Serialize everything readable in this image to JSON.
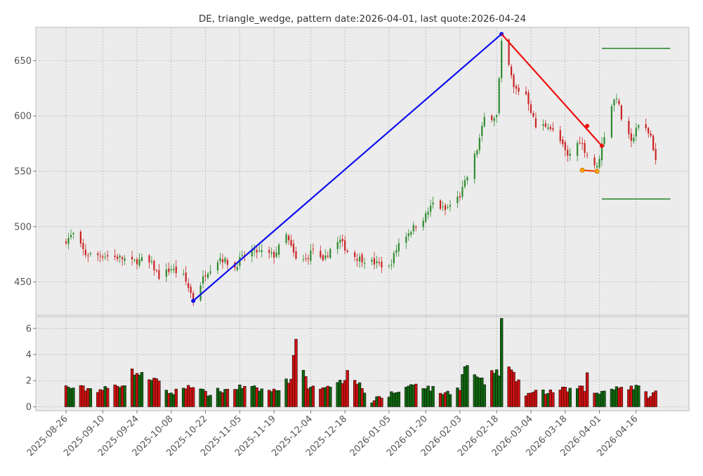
{
  "chart_data": {
    "type": "candlestick-with-volume",
    "title": "DE, triangle_wedge, pattern date:2026-04-01, last quote:2026-04-24",
    "price_panel": {
      "ylim": [
        420,
        680
      ],
      "yticks": [
        450,
        500,
        550,
        600,
        650
      ],
      "grid": true,
      "colors": {
        "up": "#2e8b2e",
        "down": "#cc2222",
        "bg": "#ececec"
      }
    },
    "volume_panel": {
      "ylim": [
        -0.3,
        6.9
      ],
      "yticks": [
        0,
        2,
        4,
        6
      ],
      "grid": true,
      "colors": {
        "up": "#116611",
        "down": "#cc1111"
      }
    },
    "x_ticks": [
      "2025-08-26",
      "2025-09-10",
      "2025-09-24",
      "2025-10-08",
      "2025-10-22",
      "2025-11-05",
      "2025-11-19",
      "2025-12-04",
      "2025-12-18",
      "2026-01-05",
      "2026-01-20",
      "2026-02-03",
      "2026-02-18",
      "2026-03-04",
      "2026-03-18",
      "2026-04-01",
      "2026-04-16"
    ],
    "close_anchors": [
      [
        "2025-08-26",
        488
      ],
      [
        "2025-08-29",
        493
      ],
      [
        "2025-09-03",
        475
      ],
      [
        "2025-09-10",
        474
      ],
      [
        "2025-09-17",
        472
      ],
      [
        "2025-09-22",
        468
      ],
      [
        "2025-09-26",
        470
      ],
      [
        "2025-09-30",
        466
      ],
      [
        "2025-10-03",
        455
      ],
      [
        "2025-10-08",
        462
      ],
      [
        "2025-10-13",
        455
      ],
      [
        "2025-10-16",
        440
      ],
      [
        "2025-10-17",
        434
      ],
      [
        "2025-10-22",
        458
      ],
      [
        "2025-10-28",
        472
      ],
      [
        "2025-11-03",
        463
      ],
      [
        "2025-11-05",
        470
      ],
      [
        "2025-11-10",
        478
      ],
      [
        "2025-11-14",
        477
      ],
      [
        "2025-11-19",
        474
      ],
      [
        "2025-11-24",
        492
      ],
      [
        "2025-11-28",
        470
      ],
      [
        "2025-12-02",
        470
      ],
      [
        "2025-12-05",
        480
      ],
      [
        "2025-12-09",
        467
      ],
      [
        "2025-12-12",
        480
      ],
      [
        "2025-12-16",
        487
      ],
      [
        "2025-12-19",
        478
      ],
      [
        "2025-12-23",
        472
      ],
      [
        "2025-12-29",
        468
      ],
      [
        "2026-01-05",
        463
      ],
      [
        "2026-01-09",
        485
      ],
      [
        "2026-01-13",
        495
      ],
      [
        "2026-01-20",
        510
      ],
      [
        "2026-01-23",
        521
      ],
      [
        "2026-01-28",
        515
      ],
      [
        "2026-02-03",
        528
      ],
      [
        "2026-02-06",
        545
      ],
      [
        "2026-02-10",
        570
      ],
      [
        "2026-02-13",
        598
      ],
      [
        "2026-02-18",
        600
      ],
      [
        "2026-02-20",
        665
      ],
      [
        "2026-02-23",
        645
      ],
      [
        "2026-02-25",
        625
      ],
      [
        "2026-03-02",
        620
      ],
      [
        "2026-03-06",
        590
      ],
      [
        "2026-03-11",
        592
      ],
      [
        "2026-03-16",
        577
      ],
      [
        "2026-03-19",
        563
      ],
      [
        "2026-03-24",
        578
      ],
      [
        "2026-03-27",
        565
      ],
      [
        "2026-03-31",
        553
      ],
      [
        "2026-04-02",
        574
      ],
      [
        "2026-04-06",
        610
      ],
      [
        "2026-04-08",
        618
      ],
      [
        "2026-04-10",
        598
      ],
      [
        "2026-04-14",
        575
      ],
      [
        "2026-04-16",
        590
      ],
      [
        "2026-04-20",
        588
      ],
      [
        "2026-04-22",
        582
      ],
      [
        "2026-04-24",
        560
      ]
    ],
    "volume_anchors": [
      [
        "2025-08-26",
        1.5
      ],
      [
        "2025-09-10",
        1.3
      ],
      [
        "2025-09-19",
        1.8
      ],
      [
        "2025-09-22",
        2.7
      ],
      [
        "2025-10-01",
        2.1
      ],
      [
        "2025-10-08",
        1.0
      ],
      [
        "2025-10-16",
        1.7
      ],
      [
        "2025-10-22",
        1.0
      ],
      [
        "2025-11-05",
        1.5
      ],
      [
        "2025-11-19",
        1.2
      ],
      [
        "2025-11-26",
        2.2
      ],
      [
        "2025-11-28",
        5.4
      ],
      [
        "2025-12-03",
        1.3
      ],
      [
        "2025-12-18",
        2.0
      ],
      [
        "2025-12-19",
        3.0
      ],
      [
        "2025-12-29",
        0.4
      ],
      [
        "2026-01-05",
        0.9
      ],
      [
        "2026-01-16",
        1.8
      ],
      [
        "2026-01-28",
        1.0
      ],
      [
        "2026-02-03",
        1.5
      ],
      [
        "2026-02-05",
        3.2
      ],
      [
        "2026-02-13",
        1.8
      ],
      [
        "2026-02-16",
        2.7
      ],
      [
        "2026-02-19",
        2.6
      ],
      [
        "2026-02-20",
        6.6
      ],
      [
        "2026-02-23",
        3.0
      ],
      [
        "2026-02-26",
        2.1
      ],
      [
        "2026-03-02",
        1.0
      ],
      [
        "2026-03-18",
        1.3
      ],
      [
        "2026-03-26",
        1.4
      ],
      [
        "2026-03-27",
        2.7
      ],
      [
        "2026-03-30",
        0.9
      ],
      [
        "2026-04-06",
        1.5
      ],
      [
        "2026-04-16",
        1.5
      ],
      [
        "2026-04-22",
        0.8
      ],
      [
        "2026-04-24",
        1.1
      ]
    ],
    "pattern_lines": [
      {
        "color": "#1010ee",
        "marker": true,
        "points": [
          [
            "2025-10-17",
            433
          ],
          [
            "2026-02-20",
            674
          ]
        ]
      },
      {
        "color": "#ee1111",
        "marker": false,
        "points": [
          [
            "2026-02-20",
            674
          ],
          [
            "2026-04-02",
            573
          ]
        ]
      },
      {
        "color": "#ee1111",
        "marker": true,
        "points": [
          [
            "2026-03-27",
            591
          ]
        ]
      },
      {
        "color": "#ee1111",
        "marker": true,
        "points": [
          [
            "2026-04-02",
            573
          ]
        ]
      },
      {
        "color": "#ee4411",
        "marker": true,
        "marker_color": "#ffa500",
        "points": [
          [
            "2026-03-25",
            551
          ],
          [
            "2026-03-31",
            550
          ]
        ]
      }
    ],
    "level_lines": [
      {
        "color": "#117711",
        "y": 661,
        "x_from": "2026-04-02",
        "x_to": "2026-04-30"
      },
      {
        "color": "#117711",
        "y": 525,
        "x_from": "2026-04-02",
        "x_to": "2026-04-30"
      }
    ]
  }
}
